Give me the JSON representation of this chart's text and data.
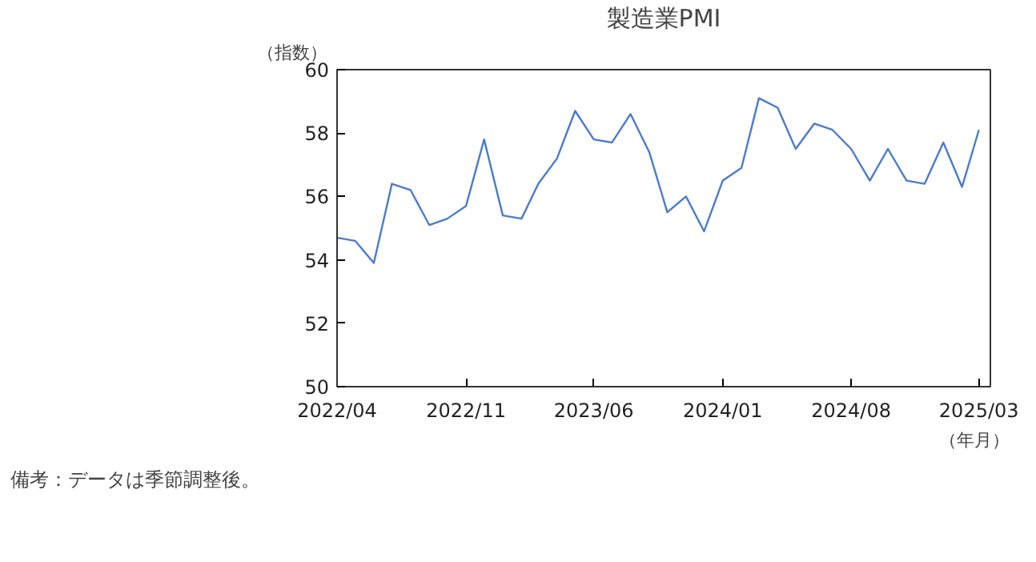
{
  "chart_data": {
    "type": "line",
    "title": "製造業PMI",
    "ylabel": "（指数）",
    "xlabel": "（年月）",
    "x": [
      "2022-04",
      "2022-05",
      "2022-06",
      "2022-07",
      "2022-08",
      "2022-09",
      "2022-10",
      "2022-11",
      "2022-12",
      "2023-01",
      "2023-02",
      "2023-03",
      "2023-04",
      "2023-05",
      "2023-06",
      "2023-07",
      "2023-08",
      "2023-09",
      "2023-10",
      "2023-11",
      "2023-12",
      "2024-01",
      "2024-02",
      "2024-03",
      "2024-04",
      "2024-05",
      "2024-06",
      "2024-07",
      "2024-08",
      "2024-09",
      "2024-10",
      "2024-11",
      "2024-12",
      "2025-01",
      "2025-02",
      "2025-03"
    ],
    "series": [
      {
        "color": "#4a7bd0",
        "values": [
          54.7,
          54.6,
          53.9,
          56.4,
          56.2,
          55.1,
          55.3,
          55.7,
          57.8,
          55.4,
          55.3,
          56.4,
          57.2,
          58.7,
          57.8,
          57.7,
          58.6,
          57.4,
          55.5,
          56.0,
          54.9,
          56.5,
          56.9,
          59.1,
          58.8,
          57.5,
          58.3,
          58.1,
          57.5,
          56.5,
          57.5,
          56.5,
          56.4,
          57.7,
          56.3,
          58.1
        ]
      }
    ],
    "xlim": [
      "2022-04",
      "2025-03-20"
    ],
    "xticks": [
      {
        "value": "2022-04",
        "label": "2022/04"
      },
      {
        "value": "2022-11",
        "label": "2022/11"
      },
      {
        "value": "2023-06",
        "label": "2023/06"
      },
      {
        "value": "2024-01",
        "label": "2024/01"
      },
      {
        "value": "2024-08",
        "label": "2024/08"
      },
      {
        "value": "2025-03",
        "label": "2025/03"
      }
    ],
    "ylim": [
      50,
      60
    ],
    "yticks": [
      50,
      52,
      54,
      56,
      58,
      60
    ],
    "grid": false,
    "marker": "none",
    "line_style": "solid",
    "annotations": [
      "備考：データは季節調整後。"
    ]
  }
}
